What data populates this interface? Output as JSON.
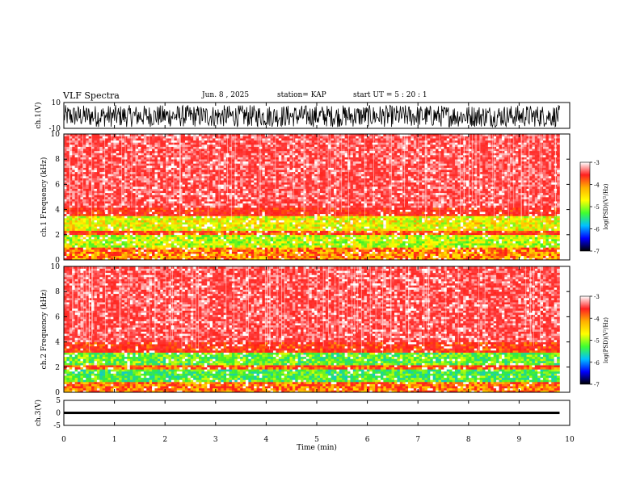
{
  "header": {
    "title": "VLF Spectra",
    "date": "Jun. 8 , 2025",
    "station": "station= KAP",
    "start": "start UT = 5 : 20 : 1"
  },
  "colorbar": {
    "label": "log(PSD)(V²/Hz)",
    "ticks": [
      "-3",
      "-4",
      "-5",
      "-6",
      "-7"
    ],
    "values": [
      -3,
      -4,
      -5,
      -6,
      -7
    ],
    "colors": [
      "#ffffff",
      "#ff2020",
      "#ffb000",
      "#ffff00",
      "#40ff30",
      "#00c0ff",
      "#0000ff",
      "#000000"
    ]
  },
  "chart_data": [
    {
      "type": "line",
      "name": "ch1-waveform",
      "ylabel": "ch.1(V)",
      "ylim": [
        -10,
        10
      ],
      "yticks": [
        "10",
        "-10"
      ],
      "x_range_min": [
        0,
        9.8
      ],
      "description_values": {
        "amplitude_range": [
          -9,
          8
        ]
      }
    },
    {
      "type": "heatmap",
      "name": "ch1-spectrogram",
      "ylabel": "ch.1 Frequency (kHz)",
      "ylim": [
        0,
        10
      ],
      "yticks": [
        "10",
        "8",
        "6",
        "4",
        "2",
        "0"
      ],
      "x_range_min": [
        0,
        9.8
      ],
      "bands": [
        {
          "from_khz": 0.0,
          "to_khz": 1.0,
          "level": -4.5
        },
        {
          "from_khz": 1.0,
          "to_khz": 2.0,
          "level": -5.2
        },
        {
          "from_khz": 2.0,
          "to_khz": 2.4,
          "level": -4.2
        },
        {
          "from_khz": 2.4,
          "to_khz": 3.5,
          "level": -5.0
        },
        {
          "from_khz": 3.5,
          "to_khz": 4.2,
          "level": -4.0
        },
        {
          "from_khz": 4.2,
          "to_khz": 10.0,
          "level": -3.6
        }
      ]
    },
    {
      "type": "heatmap",
      "name": "ch2-spectrogram",
      "ylabel": "ch.2 Frequency (kHz)",
      "ylim": [
        0,
        10
      ],
      "yticks": [
        "10",
        "8",
        "6",
        "4",
        "2",
        "0"
      ],
      "x_range_min": [
        0,
        9.8
      ],
      "bands": [
        {
          "from_khz": 0.0,
          "to_khz": 0.8,
          "level": -4.4
        },
        {
          "from_khz": 0.8,
          "to_khz": 1.9,
          "level": -5.6
        },
        {
          "from_khz": 1.9,
          "to_khz": 2.2,
          "level": -4.3
        },
        {
          "from_khz": 2.2,
          "to_khz": 3.2,
          "level": -5.5
        },
        {
          "from_khz": 3.2,
          "to_khz": 4.0,
          "level": -4.1
        },
        {
          "from_khz": 4.0,
          "to_khz": 10.0,
          "level": -3.6
        }
      ]
    },
    {
      "type": "line",
      "name": "ch3-waveform",
      "ylabel": "ch.3(V)",
      "ylim": [
        -5,
        5
      ],
      "yticks": [
        "5",
        "0",
        "-5"
      ],
      "x_range_min": [
        0,
        9.8
      ],
      "description_values": {
        "amplitude_range": [
          -0.5,
          0.5
        ]
      }
    }
  ],
  "xaxis": {
    "label": "Time (min)",
    "range": [
      0,
      10
    ],
    "ticks": [
      "0",
      "1",
      "2",
      "3",
      "4",
      "5",
      "6",
      "7",
      "8",
      "9",
      "10"
    ]
  }
}
